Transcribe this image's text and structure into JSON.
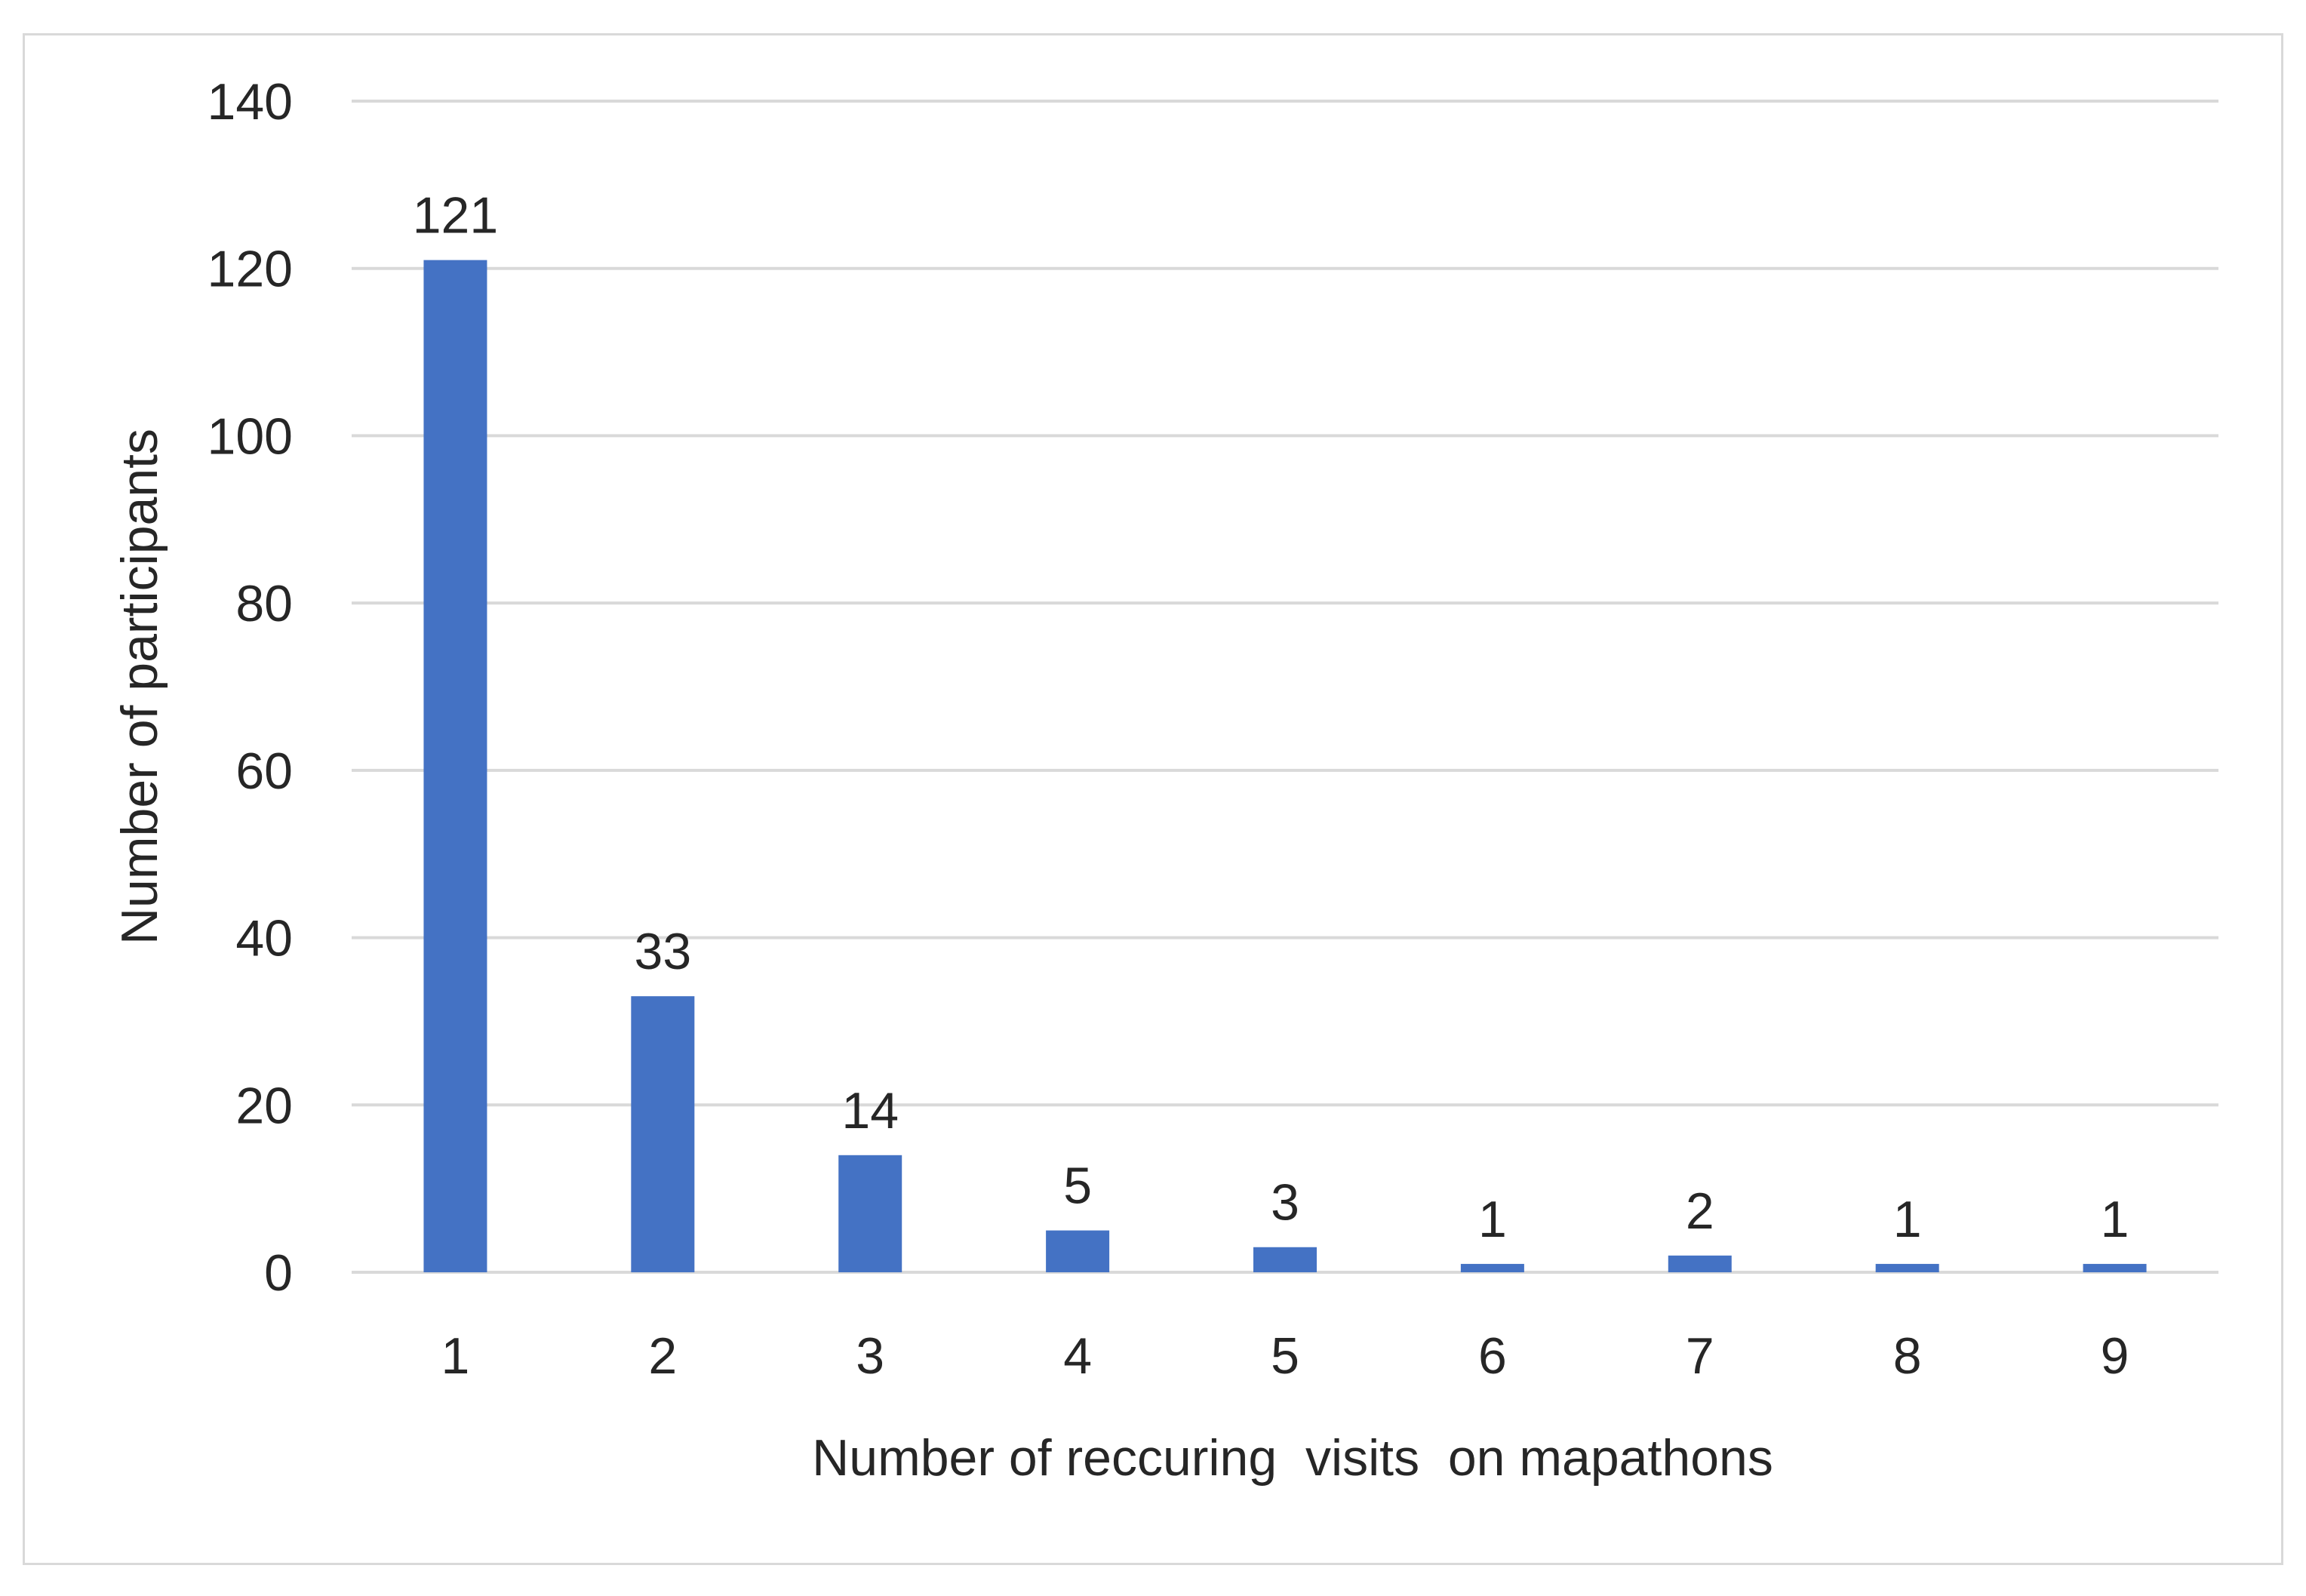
{
  "chart_data": {
    "type": "bar",
    "title": "",
    "xlabel": "Number of reccuring  visits  on mapathons",
    "ylabel": "Number of participants",
    "categories": [
      "1",
      "2",
      "3",
      "4",
      "5",
      "6",
      "7",
      "8",
      "9"
    ],
    "values": [
      121,
      33,
      14,
      5,
      3,
      1,
      2,
      1,
      1
    ],
    "data_labels": [
      "121",
      "33",
      "14",
      "5",
      "3",
      "1",
      "2",
      "1",
      "1"
    ],
    "ylim": [
      0,
      140
    ],
    "yticks": [
      0,
      20,
      40,
      60,
      80,
      100,
      120,
      140
    ],
    "ytick_labels": [
      "0",
      "20",
      "40",
      "60",
      "80",
      "100",
      "120",
      "140"
    ],
    "grid": true,
    "legend": "none",
    "colors": {
      "bar": "#4472c4",
      "grid": "#d9d9d9",
      "text": "#262626",
      "border": "#d9d9d9"
    }
  }
}
